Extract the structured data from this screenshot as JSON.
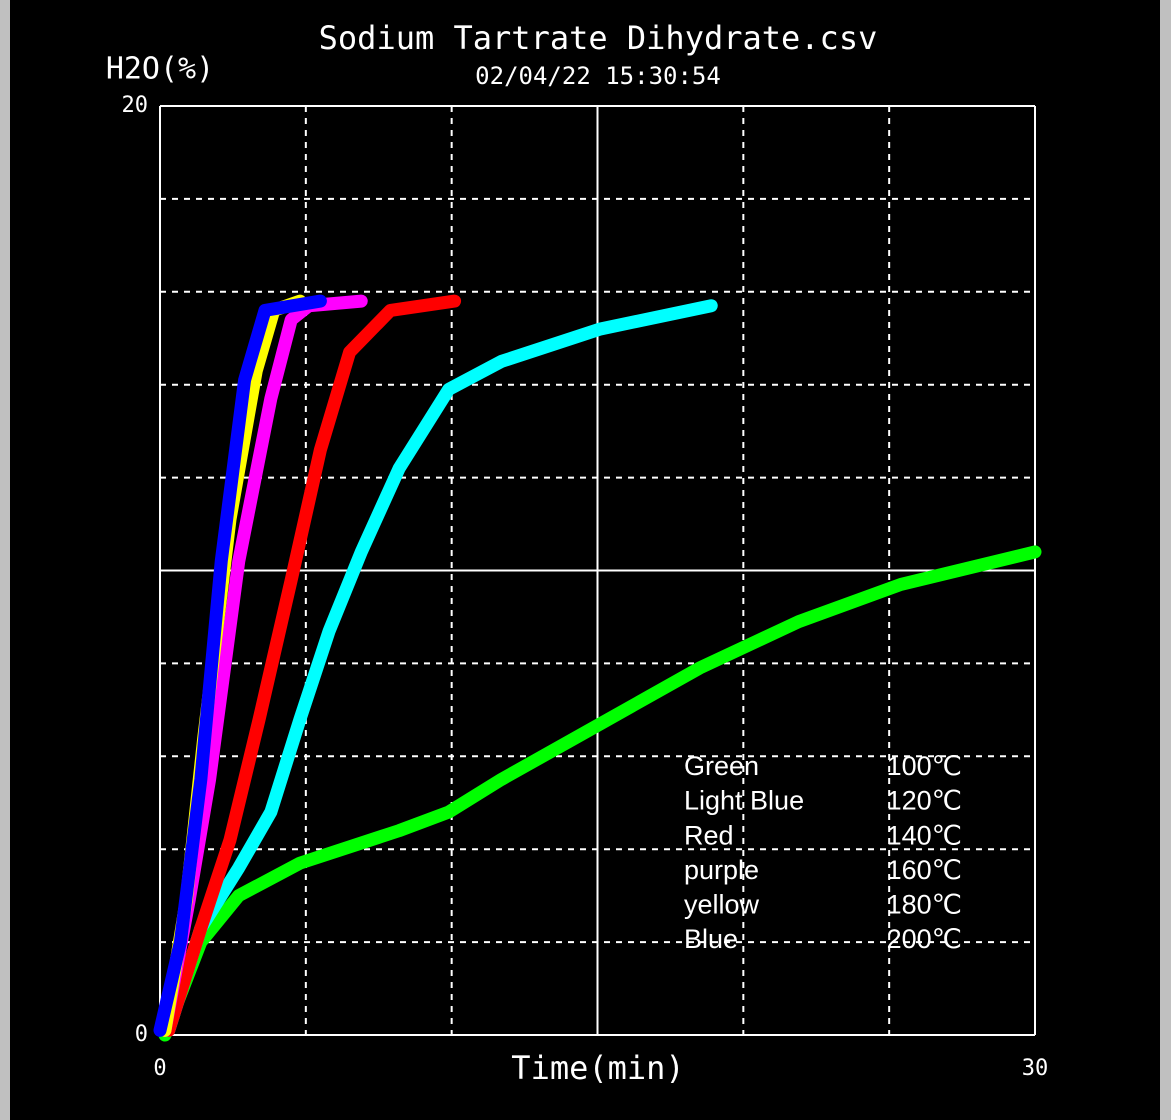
{
  "chart_data": {
    "type": "line",
    "title": "Sodium Tartrate Dihydrate.csv",
    "subtitle": "02/04/22 15:30:54",
    "ylabel": "H2O(%)",
    "xlabel": "Time(min)",
    "xlim": [
      0,
      30
    ],
    "ylim": [
      0,
      20
    ],
    "xticks": [
      0,
      {
        "value": 5,
        "label": null
      },
      {
        "value": 10,
        "label": null
      },
      {
        "value": 15,
        "label": null
      },
      {
        "value": 20,
        "label": null
      },
      {
        "value": 25,
        "label": null
      },
      30
    ],
    "yticks": [
      0,
      {
        "value": 2,
        "label": null
      },
      {
        "value": 4,
        "label": null
      },
      {
        "value": 6,
        "label": null
      },
      {
        "value": 8,
        "label": null
      },
      {
        "value": 10,
        "label": null
      },
      {
        "value": 12,
        "label": null
      },
      {
        "value": 14,
        "label": null
      },
      {
        "value": 16,
        "label": null
      },
      {
        "value": 18,
        "label": null
      },
      20
    ],
    "grid": true,
    "xmajor": 15,
    "ymajor": 10,
    "series": [
      {
        "name": "Green",
        "label": "100℃",
        "color": "#00ff00",
        "x": [
          0.17,
          1.4,
          2.7,
          4.8,
          8.2,
          9.9,
          11.7,
          15.1,
          18.5,
          21.9,
          25.4,
          30
        ],
        "values": [
          0,
          2.0,
          3.0,
          3.7,
          4.4,
          4.8,
          5.5,
          6.7,
          7.9,
          8.9,
          9.7,
          10.4
        ]
      },
      {
        "name": "Light Blue",
        "label": "120℃",
        "color": "#00ffff",
        "x": [
          0.3,
          1.4,
          2.7,
          3.8,
          4.8,
          5.8,
          6.9,
          8.2,
          9.9,
          11.7,
          15.1,
          18.9
        ],
        "values": [
          0.1,
          2.3,
          3.6,
          4.8,
          6.8,
          8.7,
          10.4,
          12.2,
          13.9,
          14.5,
          15.2,
          15.7
        ]
      },
      {
        "name": "Red",
        "label": "140℃",
        "color": "#ff0000",
        "x": [
          0.3,
          1.4,
          2.4,
          3.4,
          4.5,
          5.5,
          6.5,
          7.9,
          10.1
        ],
        "values": [
          0.1,
          2.3,
          4.2,
          6.8,
          9.8,
          12.6,
          14.7,
          15.6,
          15.8
        ]
      },
      {
        "name": "purple",
        "label": "160℃",
        "color": "#ff00ff",
        "x": [
          0.17,
          1.0,
          1.7,
          2.7,
          3.8,
          4.5,
          5.1,
          6.9
        ],
        "values": [
          0.1,
          2.9,
          5.5,
          10.2,
          13.7,
          15.4,
          15.7,
          15.8
        ]
      },
      {
        "name": "yellow",
        "label": "180℃",
        "color": "#ffff00",
        "x": [
          0.17,
          0.9,
          1.5,
          2.4,
          3.3,
          3.9,
          4.8
        ],
        "values": [
          0.1,
          2.9,
          6.4,
          11.1,
          14.3,
          15.6,
          15.8
        ]
      },
      {
        "name": "Blue",
        "label": "200℃",
        "color": "#0000ff",
        "x": [
          0,
          0.7,
          1.4,
          2.1,
          2.9,
          3.6,
          5.5
        ],
        "values": [
          0.1,
          2.0,
          5.5,
          10.2,
          14.1,
          15.6,
          15.8
        ]
      }
    ]
  }
}
